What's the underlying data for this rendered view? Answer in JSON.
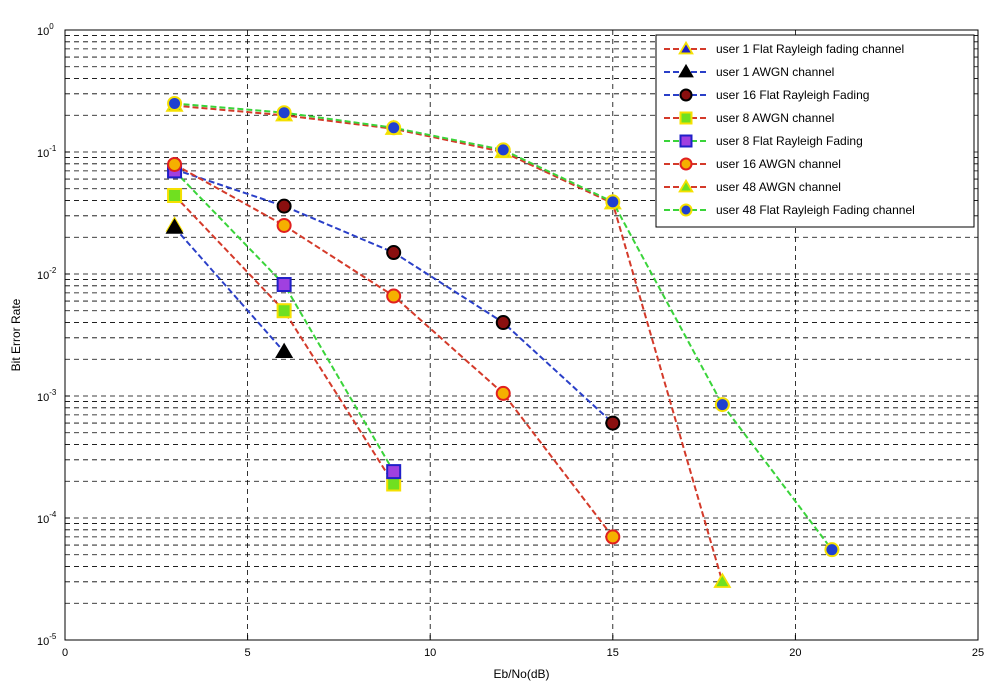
{
  "chart_data": {
    "type": "line",
    "xlabel": "Eb/No(dB)",
    "ylabel": "Bit Error Rate",
    "xlim": [
      0,
      25
    ],
    "ylim_exponent": [
      -5,
      0
    ],
    "yscale": "log",
    "grid": true,
    "legend_position": "top-right",
    "x_ticks": [
      {
        "value": 0,
        "label": "0"
      },
      {
        "value": 5,
        "label": "5"
      },
      {
        "value": 10,
        "label": "10"
      },
      {
        "value": 15,
        "label": "15"
      },
      {
        "value": 20,
        "label": "20"
      },
      {
        "value": 25,
        "label": "25"
      }
    ],
    "y_ticks": [
      {
        "exp": 0,
        "base": "10",
        "sup": "0"
      },
      {
        "exp": -1,
        "base": "10",
        "sup": "-1"
      },
      {
        "exp": -2,
        "base": "10",
        "sup": "-2"
      },
      {
        "exp": -3,
        "base": "10",
        "sup": "-3"
      },
      {
        "exp": -4,
        "base": "10",
        "sup": "-4"
      },
      {
        "exp": -5,
        "base": "10",
        "sup": "-5"
      }
    ],
    "series": [
      {
        "name": "user 1 Flat Rayleigh fading channel",
        "line_color": "#d43a2a",
        "marker": "triangle",
        "marker_face": "#2020c8",
        "marker_edge": "#f5e000",
        "x": [
          3
        ],
        "y": [
          0.025
        ]
      },
      {
        "name": "user 1 AWGN channel",
        "line_color": "#2a3fc8",
        "marker": "triangle",
        "marker_face": "#000000",
        "marker_edge": "#000000",
        "x": [
          3,
          6
        ],
        "y": [
          0.024,
          0.0023
        ]
      },
      {
        "name": "user 16 Flat Rayleigh Fading",
        "line_color": "#2a3fc8",
        "marker": "circle",
        "marker_face": "#8a0f0f",
        "marker_edge": "#000000",
        "x": [
          3,
          6,
          9,
          12,
          15
        ],
        "y": [
          0.072,
          0.036,
          0.015,
          0.004,
          0.0006
        ]
      },
      {
        "name": "user 8 AWGN channel",
        "line_color": "#d43a2a",
        "marker": "square",
        "marker_face": "#70e020",
        "marker_edge": "#f5e000",
        "x": [
          3,
          6,
          9
        ],
        "y": [
          0.044,
          0.005,
          0.00019
        ]
      },
      {
        "name": "user 8 Flat Rayleigh Fading",
        "line_color": "#3ad43a",
        "marker": "square",
        "marker_face": "#a040e0",
        "marker_edge": "#2020c8",
        "x": [
          3,
          6,
          9
        ],
        "y": [
          0.07,
          0.0082,
          0.00024
        ]
      },
      {
        "name": "user 16 AWGN channel",
        "line_color": "#d43a2a",
        "marker": "circle",
        "marker_face": "#f5b000",
        "marker_edge": "#e02020",
        "x": [
          3,
          6,
          9,
          12,
          15
        ],
        "y": [
          0.079,
          0.025,
          0.0066,
          0.00105,
          7e-05
        ]
      },
      {
        "name": "user 48 AWGN channel",
        "line_color": "#d43a2a",
        "marker": "triangle",
        "marker_face": "#70e020",
        "marker_edge": "#f5e000",
        "x": [
          3,
          6,
          9,
          12,
          15,
          18
        ],
        "y": [
          0.24,
          0.2,
          0.155,
          0.1,
          0.038,
          3e-05
        ]
      },
      {
        "name": "user 48 Flat Rayleigh Fading channel",
        "line_color": "#3ad43a",
        "marker": "circle",
        "marker_face": "#2040d0",
        "marker_edge": "#f5e000",
        "x": [
          3,
          6,
          9,
          12,
          15,
          18,
          21
        ],
        "y": [
          0.25,
          0.21,
          0.158,
          0.104,
          0.039,
          0.00085,
          5.5e-05
        ]
      }
    ]
  }
}
